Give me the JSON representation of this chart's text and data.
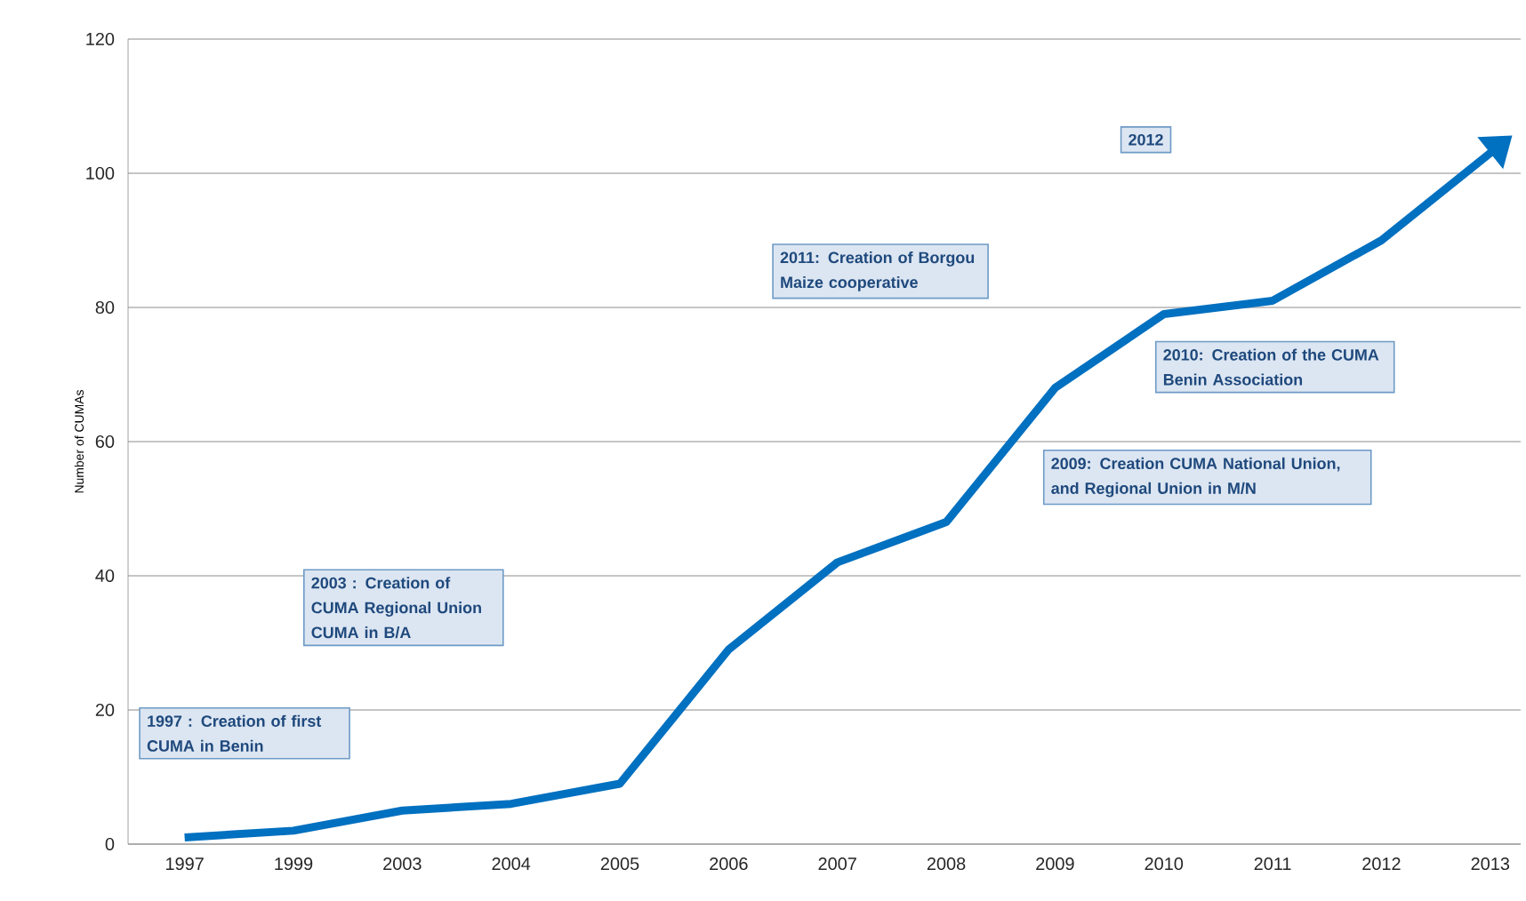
{
  "chart_data": {
    "type": "line",
    "ylabel": "Number of CUMAs",
    "categories": [
      "1997",
      "1999",
      "2003",
      "2004",
      "2005",
      "2006",
      "2007",
      "2008",
      "2009",
      "2010",
      "2011",
      "2012",
      "2013"
    ],
    "series": [
      {
        "color": "#0070c0",
        "values": [
          1,
          2,
          5,
          6,
          9,
          29,
          42,
          48,
          68,
          79,
          81,
          90,
          103
        ]
      }
    ],
    "ylim": [
      0,
      120
    ],
    "yticks": [
      0,
      20,
      40,
      60,
      80,
      100,
      120
    ],
    "grid": "y",
    "marker": "none",
    "line_style": "solid",
    "annotations": [
      "1997 : Creation of first CUMA in Benin",
      "2003 : Creation of CUMA Regional Union CUMA in B/A",
      "2011: Creation of Borgou Maize cooperative",
      "2012",
      "2010: Creation of the CUMA Benin Association",
      "2009: Creation CUMA National Union, and Regional Union in M/N"
    ]
  }
}
